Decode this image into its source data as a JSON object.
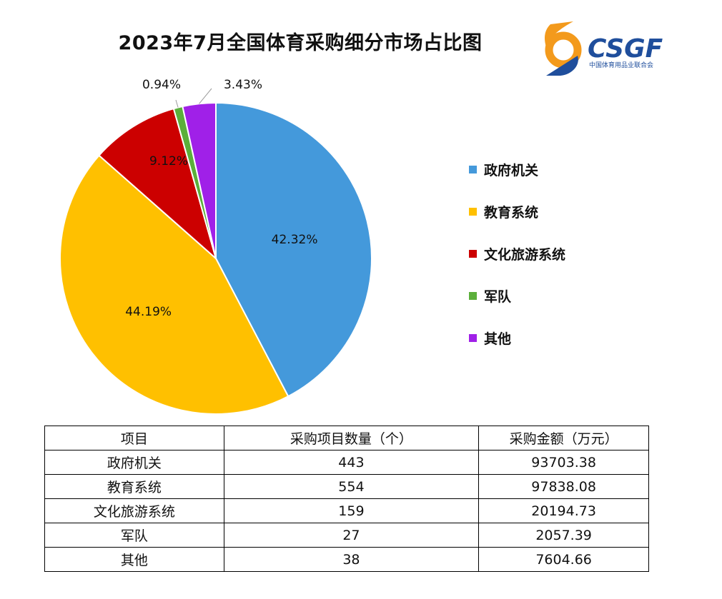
{
  "chart_data": {
    "type": "pie",
    "title": "2023年7月全国体育采购细分市场占比图",
    "legend_position": "right",
    "series": [
      {
        "name": "政府机关",
        "value": 42.32,
        "label": "42.32%",
        "color": "#4499DB"
      },
      {
        "name": "教育系统",
        "value": 44.19,
        "label": "44.19%",
        "color": "#FFC000"
      },
      {
        "name": "文化旅游系统",
        "value": 9.12,
        "label": "9.12%",
        "color": "#CC0000"
      },
      {
        "name": "军队",
        "value": 0.94,
        "label": "0.94%",
        "color": "#5BAF3A"
      },
      {
        "name": "其他",
        "value": 3.43,
        "label": "3.43%",
        "color": "#A020E8"
      }
    ]
  },
  "logo": {
    "text": "CSGF",
    "subtext": "中国体育用品业联合会",
    "colors": {
      "orange": "#F39A1C",
      "blue": "#1F4E9C"
    }
  },
  "table": {
    "headers": [
      "项目",
      "采购项目数量（个）",
      "采购金额（万元）"
    ],
    "rows": [
      [
        "政府机关",
        "443",
        "93703.38"
      ],
      [
        "教育系统",
        "554",
        "97838.08"
      ],
      [
        "文化旅游系统",
        "159",
        "20194.73"
      ],
      [
        "军队",
        "27",
        "2057.39"
      ],
      [
        "其他",
        "38",
        "7604.66"
      ]
    ]
  }
}
